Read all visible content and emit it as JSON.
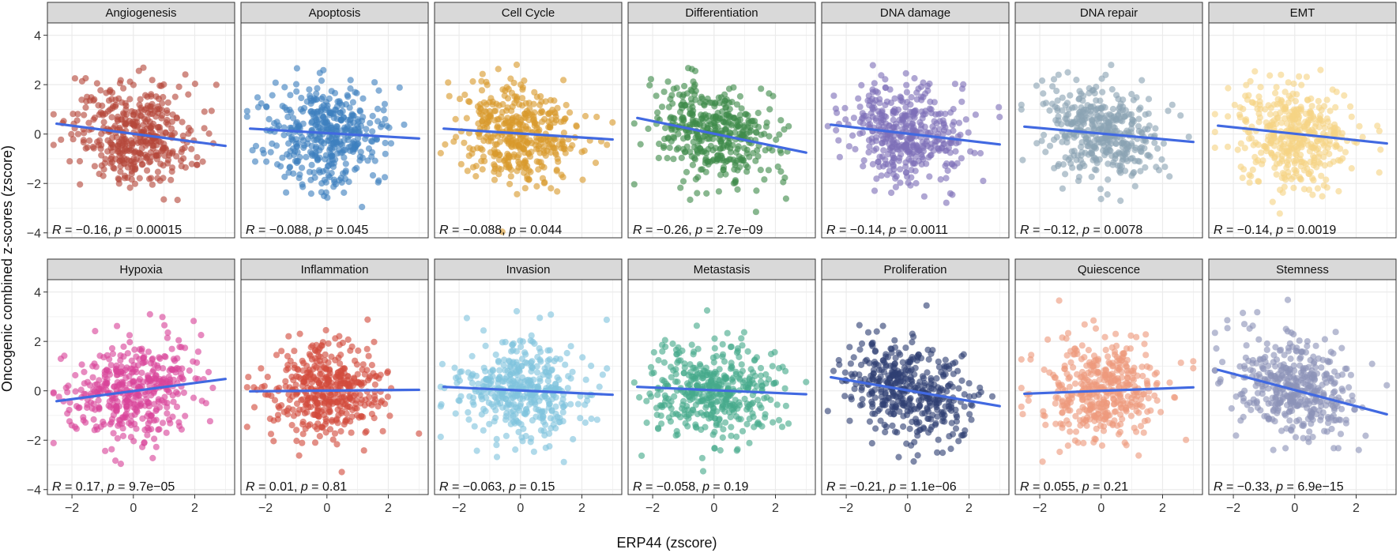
{
  "figure": {
    "ylabel": "Oncogenic combined z-scores (zscore)",
    "xlabel": "ERP44 (zscore)"
  },
  "chart_data": {
    "type": "scatter",
    "xlim": [
      -2.8,
      3.3
    ],
    "ylim": [
      -4.2,
      4.5
    ],
    "x_ticks": [
      -2,
      0,
      2
    ],
    "y_ticks": [
      -4,
      -2,
      0,
      2,
      4
    ],
    "grid": true,
    "fit_line_color": "#4169e1",
    "panels": [
      {
        "title": "Angiogenesis",
        "color": "#b5473a",
        "fit": [
          [
            -2.5,
            0.42
          ],
          [
            3.0,
            -0.48
          ]
        ],
        "r": "−0.16",
        "p": "0.00015"
      },
      {
        "title": "Apoptosis",
        "color": "#3d7fbf",
        "fit": [
          [
            -2.5,
            0.22
          ],
          [
            3.0,
            -0.18
          ]
        ],
        "r": "−0.088",
        "p": "0.045"
      },
      {
        "title": "Cell Cycle",
        "color": "#d99a2b",
        "fit": [
          [
            -2.5,
            0.22
          ],
          [
            3.0,
            -0.22
          ]
        ],
        "r": "−0.088",
        "p": "0.044"
      },
      {
        "title": "Differentiation",
        "color": "#3f8a4a",
        "fit": [
          [
            -2.5,
            0.65
          ],
          [
            3.0,
            -0.75
          ]
        ],
        "r": "−0.26",
        "p": "2.7e−09"
      },
      {
        "title": "DNA damage",
        "color": "#7e6fb8",
        "fit": [
          [
            -2.5,
            0.38
          ],
          [
            3.0,
            -0.42
          ]
        ],
        "r": "−0.14",
        "p": "0.0011"
      },
      {
        "title": "DNA repair",
        "color": "#8aa3b3",
        "fit": [
          [
            -2.5,
            0.3
          ],
          [
            3.0,
            -0.32
          ]
        ],
        "r": "−0.12",
        "p": "0.0078"
      },
      {
        "title": "EMT",
        "color": "#f5d384",
        "fit": [
          [
            -2.5,
            0.34
          ],
          [
            3.0,
            -0.38
          ]
        ],
        "r": "−0.14",
        "p": "0.0019"
      },
      {
        "title": "Hypoxia",
        "color": "#d9439a",
        "fit": [
          [
            -2.5,
            -0.42
          ],
          [
            3.0,
            0.48
          ]
        ],
        "r": "0.17",
        "p": "9.7e−05"
      },
      {
        "title": "Inflammation",
        "color": "#d24a3b",
        "fit": [
          [
            -2.5,
            -0.02
          ],
          [
            3.0,
            0.04
          ]
        ],
        "r": "0.01",
        "p": "0.81"
      },
      {
        "title": "Invasion",
        "color": "#7fc3dd",
        "fit": [
          [
            -2.5,
            0.16
          ],
          [
            3.0,
            -0.16
          ]
        ],
        "r": "−0.063",
        "p": "0.15"
      },
      {
        "title": "Metastasis",
        "color": "#45a98a",
        "fit": [
          [
            -2.5,
            0.16
          ],
          [
            3.0,
            -0.14
          ]
        ],
        "r": "−0.058",
        "p": "0.19"
      },
      {
        "title": "Proliferation",
        "color": "#2e3f73",
        "fit": [
          [
            -2.5,
            0.55
          ],
          [
            3.0,
            -0.62
          ]
        ],
        "r": "−0.21",
        "p": "1.1e−06"
      },
      {
        "title": "Quiescence",
        "color": "#ee9a7c",
        "fit": [
          [
            -2.5,
            -0.12
          ],
          [
            3.0,
            0.14
          ]
        ],
        "r": "0.055",
        "p": "0.21"
      },
      {
        "title": "Stemness",
        "color": "#8c93b8",
        "fit": [
          [
            -2.5,
            0.85
          ],
          [
            3.0,
            -0.95
          ]
        ],
        "r": "−0.33",
        "p": "6.9e−15"
      }
    ]
  }
}
